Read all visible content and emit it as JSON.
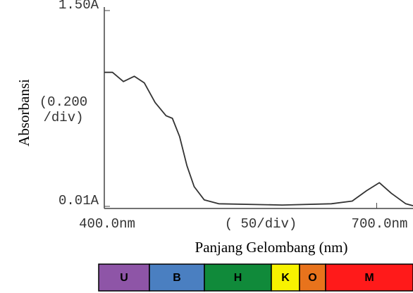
{
  "chart_data": {
    "type": "line",
    "y_label": "Absorbansi",
    "x_label": "Panjang Gelombang (nm)",
    "y_scale_note": "(0.200\n/div)",
    "x_scale_note": "( 50/div)",
    "x": [
      400,
      409,
      421,
      433,
      444,
      456,
      468,
      475,
      483,
      491,
      499,
      510,
      526,
      596,
      650,
      673,
      689,
      703,
      716,
      732,
      740
    ],
    "series": [
      {
        "name": "Absorbansi",
        "color": "#333333",
        "values": [
          1.03,
          1.03,
          0.96,
          1.0,
          0.95,
          0.8,
          0.7,
          0.68,
          0.54,
          0.32,
          0.16,
          0.06,
          0.03,
          0.02,
          0.03,
          0.05,
          0.13,
          0.19,
          0.11,
          0.03,
          0.015
        ]
      }
    ],
    "xlim": [
      400,
      740
    ],
    "ylim": [
      0.01,
      1.5
    ],
    "xticks": [
      {
        "value": 400,
        "label": "400.0nm"
      },
      {
        "value": 700,
        "label": "700.0nm"
      }
    ],
    "yticks": [
      {
        "value": 1.5,
        "label": "1.50A"
      },
      {
        "value": 0.01,
        "label": "0.01A"
      }
    ],
    "grid": false,
    "spectrum_bar": [
      {
        "label": "U",
        "color": "#8e55a7"
      },
      {
        "label": "B",
        "color": "#4a7fc1"
      },
      {
        "label": "H",
        "color": "#108a3a"
      },
      {
        "label": "K",
        "color": "#f7f200"
      },
      {
        "label": "O",
        "color": "#e8731c"
      },
      {
        "label": "M",
        "color": "#ff1a1a"
      }
    ]
  }
}
